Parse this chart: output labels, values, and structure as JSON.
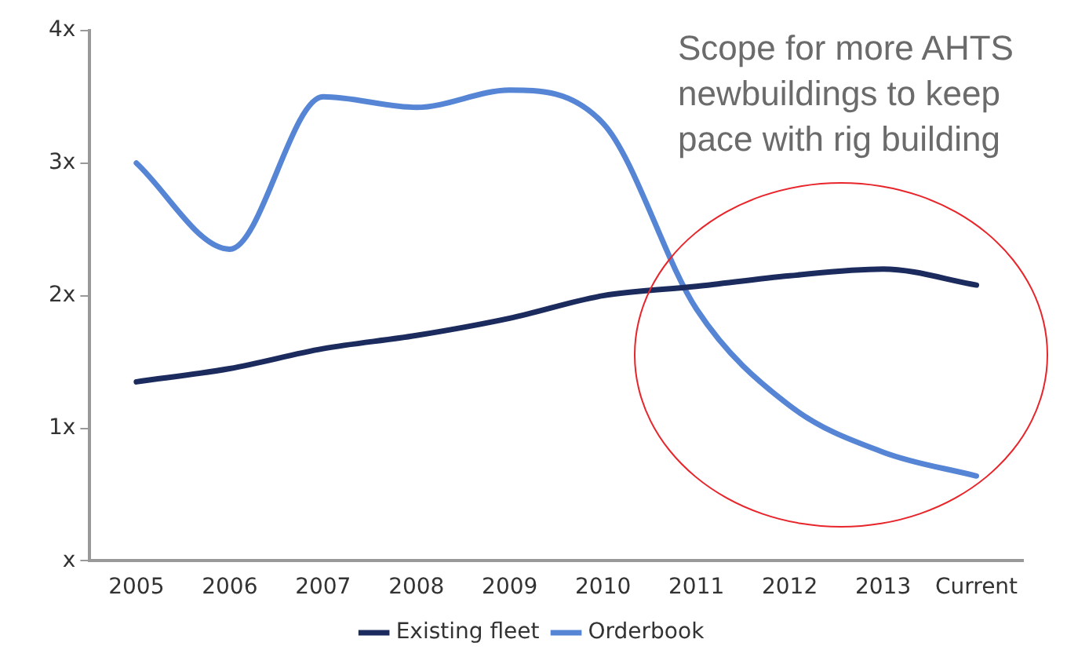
{
  "chart_data": {
    "type": "line",
    "categories": [
      "2005",
      "2006",
      "2007",
      "2008",
      "2009",
      "2010",
      "2011",
      "2012",
      "2013",
      "Current"
    ],
    "series": [
      {
        "name": "Existing fleet",
        "color": "#1c2b5e",
        "values": [
          1.35,
          1.45,
          1.6,
          1.7,
          1.83,
          2.0,
          2.07,
          2.15,
          2.2,
          2.08
        ]
      },
      {
        "name": "Orderbook",
        "color": "#5585d4",
        "values": [
          3.0,
          2.35,
          3.5,
          3.42,
          3.55,
          3.3,
          1.9,
          1.17,
          0.82,
          0.64
        ]
      }
    ],
    "ylim": [
      0,
      4
    ],
    "yticks": [
      {
        "value": 0,
        "label": "x"
      },
      {
        "value": 1,
        "label": "1x"
      },
      {
        "value": 2,
        "label": "2x"
      },
      {
        "value": 3,
        "label": "3x"
      },
      {
        "value": 4,
        "label": "4x"
      }
    ],
    "grid": false,
    "legend": "bottom",
    "marker": "none",
    "line_style": "solid",
    "annotations": [
      "Scope for more AHTS newbuildings to keep pace with rig building"
    ]
  }
}
